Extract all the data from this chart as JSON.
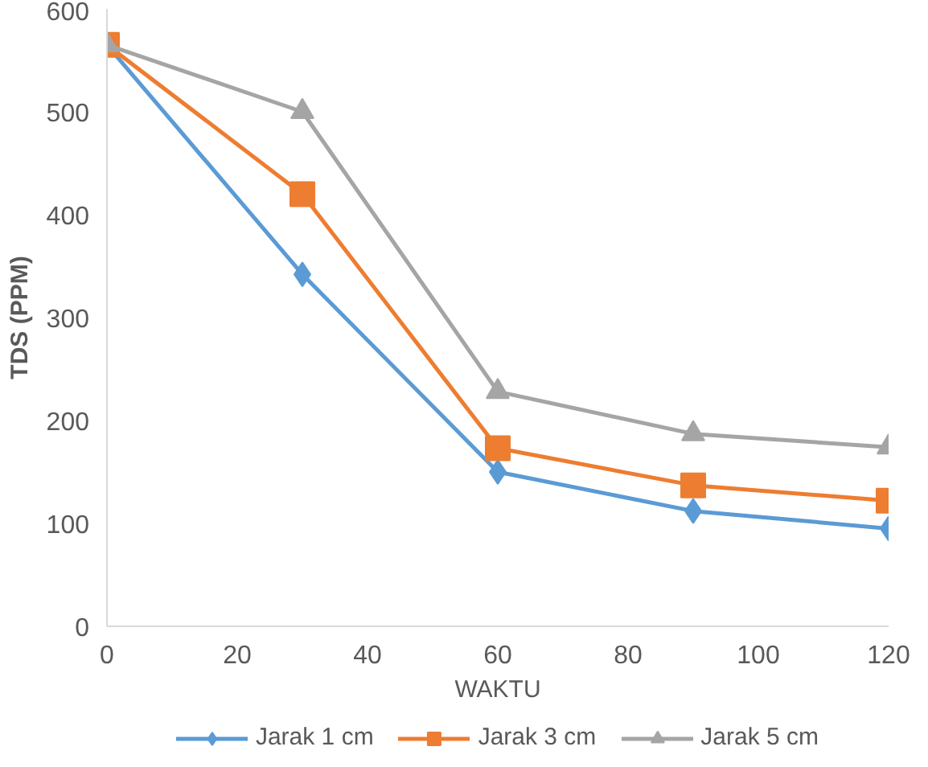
{
  "chart_data": {
    "type": "line",
    "xlabel": "WAKTU",
    "ylabel": "TDS (PPM)",
    "x": [
      0,
      30,
      60,
      90,
      120
    ],
    "series": [
      {
        "name": "Jarak 1 cm",
        "color": "#5b9bd5",
        "marker": "diamond",
        "values": [
          565,
          342,
          150,
          112,
          95
        ]
      },
      {
        "name": "Jarak 3 cm",
        "color": "#ed7d31",
        "marker": "square",
        "values": [
          565,
          420,
          173,
          137,
          122
        ]
      },
      {
        "name": "Jarak 5 cm",
        "color": "#a5a5a5",
        "marker": "triangle",
        "values": [
          565,
          500,
          228,
          187,
          174
        ]
      }
    ],
    "xlim": [
      0,
      120
    ],
    "xticks": [
      0,
      20,
      40,
      60,
      80,
      100,
      120
    ],
    "ylim": [
      0,
      600
    ],
    "yticks": [
      0,
      100,
      200,
      300,
      400,
      500,
      600
    ],
    "grid": false,
    "legend": "bottom",
    "line_style": "solid"
  }
}
